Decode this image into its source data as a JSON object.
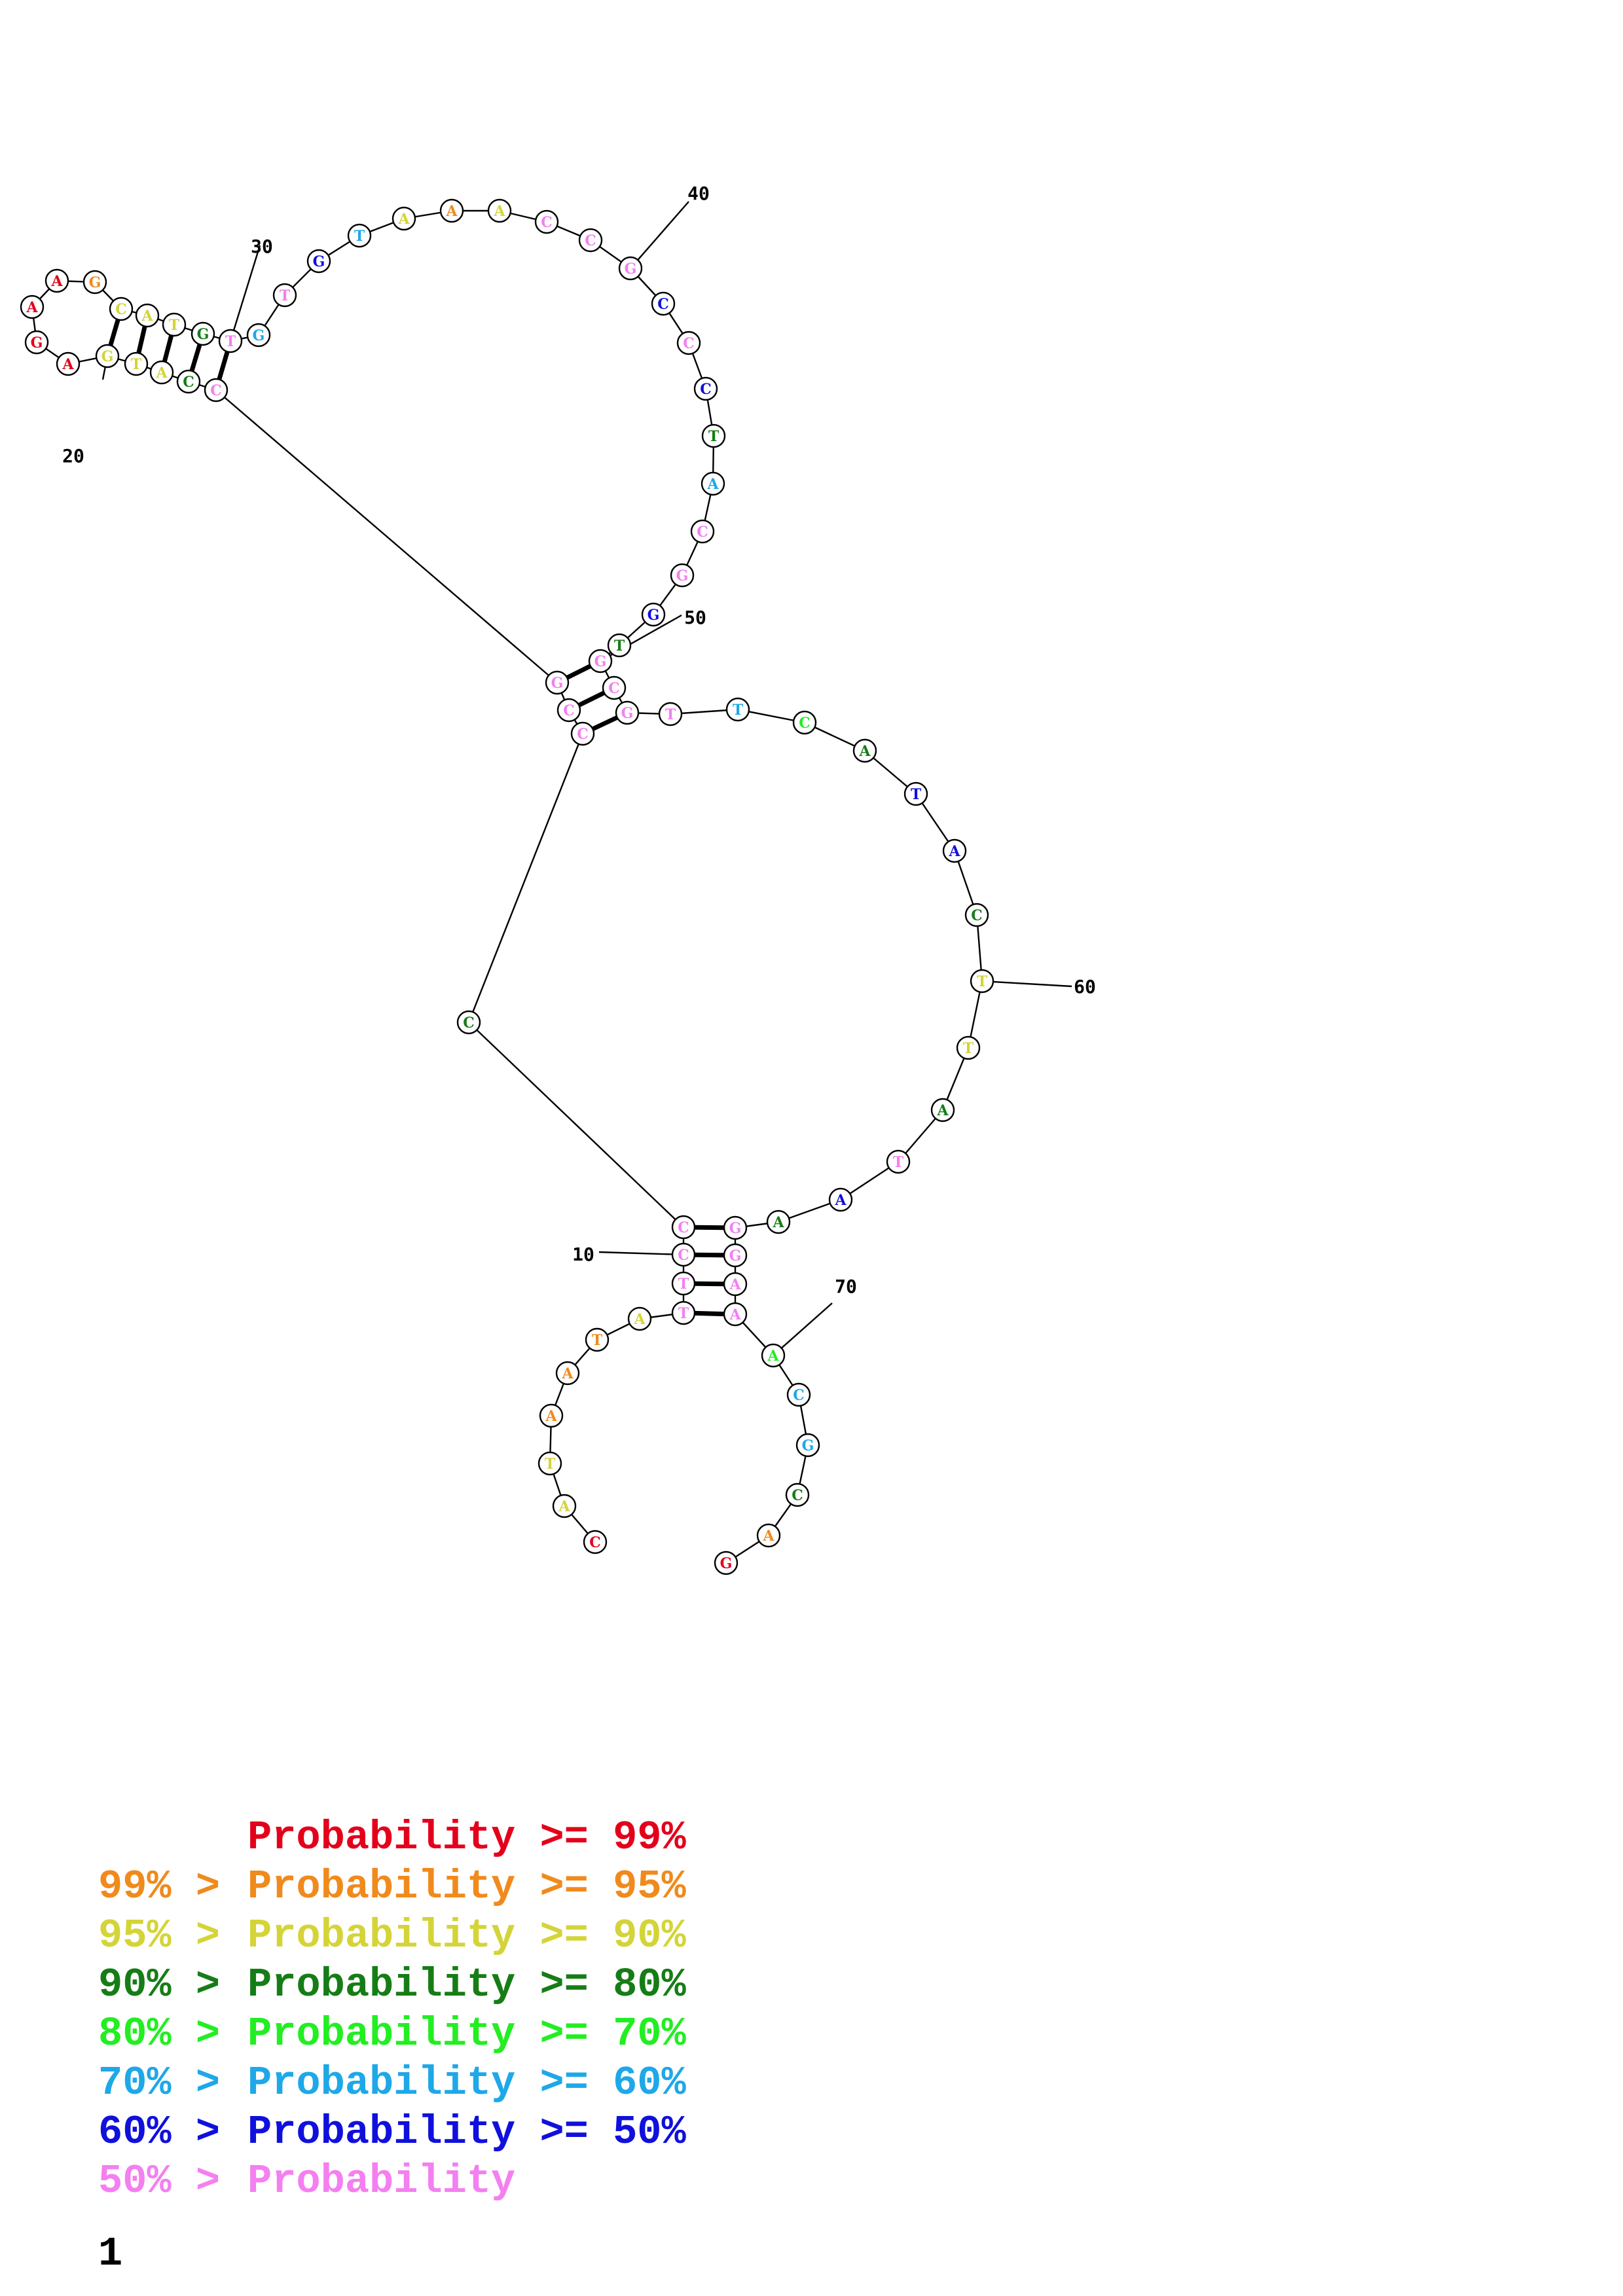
{
  "colors": {
    "ge99": "#e3001b",
    "ge95": "#f08a1d",
    "ge90": "#d4d438",
    "ge80": "#167d16",
    "ge70": "#22ee22",
    "ge60": "#1ea8e8",
    "ge50": "#1010dd",
    "lt50": "#f47ff0"
  },
  "structure": {
    "nucleotides": [
      {
        "n": 1,
        "base": "C",
        "prob": "ge99"
      },
      {
        "n": 2,
        "base": "A",
        "prob": "ge90"
      },
      {
        "n": 3,
        "base": "T",
        "prob": "ge90"
      },
      {
        "n": 4,
        "base": "A",
        "prob": "ge95"
      },
      {
        "n": 5,
        "base": "A",
        "prob": "ge95"
      },
      {
        "n": 6,
        "base": "T",
        "prob": "ge95"
      },
      {
        "n": 7,
        "base": "A",
        "prob": "ge90"
      },
      {
        "n": 8,
        "base": "T",
        "prob": "lt50"
      },
      {
        "n": 9,
        "base": "T",
        "prob": "lt50"
      },
      {
        "n": 10,
        "base": "C",
        "prob": "lt50"
      },
      {
        "n": 11,
        "base": "C",
        "prob": "lt50"
      },
      {
        "n": 12,
        "base": "C",
        "prob": "ge80"
      },
      {
        "n": 13,
        "base": "C",
        "prob": "lt50"
      },
      {
        "n": 14,
        "base": "C",
        "prob": "lt50"
      },
      {
        "n": 15,
        "base": "G",
        "prob": "lt50"
      },
      {
        "n": 16,
        "base": "C",
        "prob": "lt50"
      },
      {
        "n": 17,
        "base": "C",
        "prob": "ge80"
      },
      {
        "n": 18,
        "base": "A",
        "prob": "ge90"
      },
      {
        "n": 19,
        "base": "T",
        "prob": "ge90"
      },
      {
        "n": 20,
        "base": "G",
        "prob": "ge90"
      },
      {
        "n": 21,
        "base": "A",
        "prob": "ge99"
      },
      {
        "n": 22,
        "base": "G",
        "prob": "ge99"
      },
      {
        "n": 23,
        "base": "A",
        "prob": "ge99"
      },
      {
        "n": 24,
        "base": "A",
        "prob": "ge99"
      },
      {
        "n": 25,
        "base": "G",
        "prob": "ge95"
      },
      {
        "n": 26,
        "base": "C",
        "prob": "ge90"
      },
      {
        "n": 27,
        "base": "A",
        "prob": "ge90"
      },
      {
        "n": 28,
        "base": "T",
        "prob": "ge90"
      },
      {
        "n": 29,
        "base": "G",
        "prob": "ge80"
      },
      {
        "n": 30,
        "base": "T",
        "prob": "lt50"
      },
      {
        "n": 31,
        "base": "G",
        "prob": "ge60"
      },
      {
        "n": 32,
        "base": "T",
        "prob": "lt50"
      },
      {
        "n": 33,
        "base": "G",
        "prob": "ge50"
      },
      {
        "n": 34,
        "base": "T",
        "prob": "ge60"
      },
      {
        "n": 35,
        "base": "A",
        "prob": "ge90"
      },
      {
        "n": 36,
        "base": "A",
        "prob": "ge95"
      },
      {
        "n": 37,
        "base": "A",
        "prob": "ge90"
      },
      {
        "n": 38,
        "base": "C",
        "prob": "lt50"
      },
      {
        "n": 39,
        "base": "C",
        "prob": "lt50"
      },
      {
        "n": 40,
        "base": "G",
        "prob": "lt50"
      },
      {
        "n": 41,
        "base": "C",
        "prob": "ge50"
      },
      {
        "n": 42,
        "base": "C",
        "prob": "lt50"
      },
      {
        "n": 43,
        "base": "C",
        "prob": "ge50"
      },
      {
        "n": 44,
        "base": "T",
        "prob": "ge80"
      },
      {
        "n": 45,
        "base": "A",
        "prob": "ge60"
      },
      {
        "n": 46,
        "base": "C",
        "prob": "lt50"
      },
      {
        "n": 47,
        "base": "G",
        "prob": "lt50"
      },
      {
        "n": 48,
        "base": "G",
        "prob": "ge50"
      },
      {
        "n": 49,
        "base": "T",
        "prob": "ge80"
      },
      {
        "n": 50,
        "base": "G",
        "prob": "lt50"
      },
      {
        "n": 51,
        "base": "C",
        "prob": "lt50"
      },
      {
        "n": 52,
        "base": "G",
        "prob": "lt50"
      },
      {
        "n": 53,
        "base": "T",
        "prob": "lt50"
      },
      {
        "n": 54,
        "base": "T",
        "prob": "ge60"
      },
      {
        "n": 55,
        "base": "C",
        "prob": "ge70"
      },
      {
        "n": 56,
        "base": "A",
        "prob": "ge80"
      },
      {
        "n": 57,
        "base": "T",
        "prob": "ge50"
      },
      {
        "n": 58,
        "base": "A",
        "prob": "ge50"
      },
      {
        "n": 59,
        "base": "C",
        "prob": "ge80"
      },
      {
        "n": 60,
        "base": "T",
        "prob": "ge90"
      },
      {
        "n": 61,
        "base": "T",
        "prob": "ge90"
      },
      {
        "n": 62,
        "base": "A",
        "prob": "ge80"
      },
      {
        "n": 63,
        "base": "T",
        "prob": "lt50"
      },
      {
        "n": 64,
        "base": "A",
        "prob": "ge50"
      },
      {
        "n": 65,
        "base": "A",
        "prob": "ge80"
      },
      {
        "n": 66,
        "base": "G",
        "prob": "lt50"
      },
      {
        "n": 67,
        "base": "G",
        "prob": "lt50"
      },
      {
        "n": 68,
        "base": "A",
        "prob": "lt50"
      },
      {
        "n": 69,
        "base": "A",
        "prob": "lt50"
      },
      {
        "n": 70,
        "base": "A",
        "prob": "ge70"
      },
      {
        "n": 71,
        "base": "C",
        "prob": "ge60"
      },
      {
        "n": 72,
        "base": "G",
        "prob": "ge60"
      },
      {
        "n": 73,
        "base": "C",
        "prob": "ge80"
      },
      {
        "n": 74,
        "base": "A",
        "prob": "ge95"
      },
      {
        "n": 75,
        "base": "G",
        "prob": "ge99"
      }
    ],
    "pairs": [
      [
        8,
        69
      ],
      [
        9,
        68
      ],
      [
        10,
        67
      ],
      [
        11,
        66
      ],
      [
        13,
        52
      ],
      [
        14,
        51
      ],
      [
        15,
        50
      ],
      [
        16,
        30
      ],
      [
        17,
        29
      ],
      [
        18,
        28
      ],
      [
        19,
        27
      ],
      [
        20,
        26
      ]
    ],
    "index_labels": [
      {
        "n": 10,
        "text": "10"
      },
      {
        "n": 20,
        "text": "20"
      },
      {
        "n": 30,
        "text": "30"
      },
      {
        "n": 40,
        "text": "40"
      },
      {
        "n": 50,
        "text": "50"
      },
      {
        "n": 60,
        "text": "60"
      },
      {
        "n": 70,
        "text": "70"
      }
    ]
  },
  "legend": [
    {
      "range": "",
      "label": "Probability >= 99%",
      "prob": "ge99"
    },
    {
      "range": "99% >",
      "label": "Probability >= 95%",
      "prob": "ge95"
    },
    {
      "range": "95% >",
      "label": "Probability >= 90%",
      "prob": "ge90"
    },
    {
      "range": "90% >",
      "label": "Probability >= 80%",
      "prob": "ge80"
    },
    {
      "range": "80% >",
      "label": "Probability >= 70%",
      "prob": "ge70"
    },
    {
      "range": "70% >",
      "label": "Probability >= 60%",
      "prob": "ge60"
    },
    {
      "range": "60% >",
      "label": "Probability >= 50%",
      "prob": "ge50"
    },
    {
      "range": "50% >",
      "label": "Probability",
      "prob": "lt50"
    }
  ],
  "page_number": "1"
}
